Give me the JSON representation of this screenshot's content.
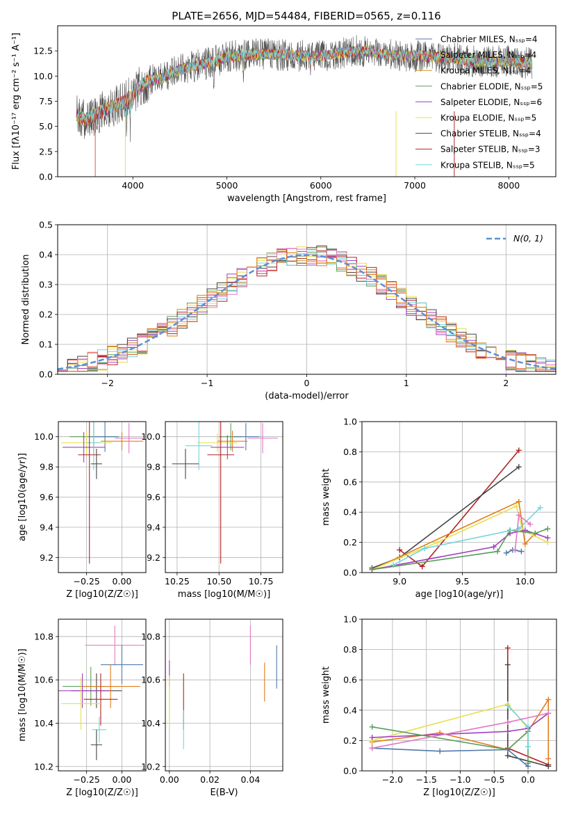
{
  "figure": {
    "title": "PLATE=2656, MJD=54484, FIBERID=0565, z=0.116"
  },
  "legend_labels": [
    "N(0, 1)"
  ],
  "chart_data": [
    {
      "id": "spectrum",
      "type": "line",
      "title": "PLATE=2656, MJD=54484, FIBERID=0565, z=0.116",
      "xlabel": "wavelength [Angstrom, rest frame]",
      "ylabel": "Flux [fλ10⁻¹⁷ erg cm⁻² s⁻¹ A⁻¹]",
      "xlim": [
        3200,
        8500
      ],
      "ylim": [
        0,
        15
      ],
      "xticks": [
        4000,
        5000,
        6000,
        7000,
        8000
      ],
      "yticks": [
        0.0,
        2.5,
        5.0,
        7.5,
        10.0,
        12.5
      ],
      "grid": false,
      "legend_position": "top-right",
      "continuum": {
        "x": [
          3400,
          3500,
          3600,
          3700,
          3800,
          3900,
          4000,
          4100,
          4200,
          4300,
          4400,
          4500,
          4600,
          4700,
          4800,
          4900,
          5000,
          5200,
          5400,
          5600,
          5800,
          6000,
          6200,
          6400,
          6600,
          6800,
          7000,
          7200,
          7400,
          7600,
          7800,
          8000,
          8200,
          8250
        ],
        "y": [
          6.1,
          5.6,
          6.2,
          6.6,
          7.0,
          7.4,
          8.2,
          9.2,
          9.6,
          9.7,
          10.3,
          10.6,
          10.9,
          11.1,
          11.3,
          11.5,
          11.9,
          12.1,
          12.2,
          12.1,
          12.0,
          12.0,
          12.3,
          12.5,
          12.3,
          12.0,
          12.0,
          11.9,
          11.8,
          11.5,
          11.4,
          11.5,
          11.3,
          11.2
        ]
      },
      "series": [
        {
          "name": "Chabrier MILES, N_SSP=4",
          "color": "#4e79a7"
        },
        {
          "name": "Salpeter MILES, N_SSP=4",
          "color": "#e15759"
        },
        {
          "name": "Kroupa MILES, N_SSP=4",
          "color": "#c4931e"
        },
        {
          "name": "Chabrier ELODIE, N_SSP=5",
          "color": "#5a9e5a"
        },
        {
          "name": "Salpeter ELODIE, N_SSP=6",
          "color": "#a040c0"
        },
        {
          "name": "Kroupa ELODIE, N_SSP=5",
          "color": "#e6e04a"
        },
        {
          "name": "Chabrier STELIB, N_SSP=4",
          "color": "#444444"
        },
        {
          "name": "Salpeter STELIB, N_SSP=3",
          "color": "#b22222"
        },
        {
          "name": "Kroupa STELIB, N_SSP=5",
          "color": "#6fd6e0"
        }
      ]
    },
    {
      "id": "residuals",
      "type": "line",
      "xlabel": "(data-model)/error",
      "ylabel": "Normed distribution",
      "xlim": [
        -2.5,
        2.5
      ],
      "ylim": [
        0,
        0.5
      ],
      "xticks": [
        -2,
        -1,
        0,
        1,
        2
      ],
      "yticks": [
        0.0,
        0.1,
        0.2,
        0.3,
        0.4,
        0.5
      ],
      "grid": true,
      "legend_position": "top-right",
      "gaussian": {
        "name": "N(0, 1)",
        "color": "#5b8fd6",
        "mean": 0,
        "sigma": 1
      },
      "bin_width": 0.1,
      "histogram_colors": [
        "#e15759",
        "#c4931e",
        "#5a9e5a",
        "#a040c0",
        "#e6e04a",
        "#444444",
        "#b22222",
        "#6fd6e0",
        "#e377c2",
        "#e07b1a"
      ]
    },
    {
      "id": "age-vs-Z",
      "type": "scatter",
      "xlabel": "Z [log10(Z/Z☉)]",
      "ylabel": "age  [log10(age/yr)]",
      "xlim": [
        -0.45,
        0.17
      ],
      "ylim": [
        9.1,
        10.1
      ],
      "xticks": [
        -0.25,
        0.0
      ],
      "yticks": [
        9.2,
        9.4,
        9.6,
        9.8,
        10.0
      ],
      "grid": true,
      "points": [
        {
          "x": -0.2,
          "y": 10.0,
          "xerr": 0.17,
          "yerr": 0.12,
          "color": "#5a9e5a"
        },
        {
          "x": -0.12,
          "y": 10.0,
          "xerr": 0.1,
          "yerr": 0.1,
          "color": "#4e79a7"
        },
        {
          "x": 0.0,
          "y": 9.97,
          "xerr": 0.15,
          "yerr": 0.06,
          "color": "#e07b1a"
        },
        {
          "x": 0.05,
          "y": 9.99,
          "xerr": 0.1,
          "yerr": 0.1,
          "color": "#e377c2"
        },
        {
          "x": -0.25,
          "y": 9.96,
          "xerr": 0.18,
          "yerr": 0.08,
          "color": "#e6e04a"
        },
        {
          "x": -0.27,
          "y": 9.93,
          "xerr": 0.15,
          "yerr": 0.1,
          "color": "#a040c0"
        },
        {
          "x": -0.2,
          "y": 9.96,
          "xerr": 0.05,
          "yerr": 0.18,
          "color": "#6fd6e0"
        },
        {
          "x": -0.23,
          "y": 9.88,
          "xerr": 0.08,
          "yerr": 0.72,
          "color": "#b22222"
        },
        {
          "x": -0.18,
          "y": 9.82,
          "xerr": 0.04,
          "yerr": 0.1,
          "color": "#444444"
        }
      ]
    },
    {
      "id": "age-vs-mass",
      "type": "scatter",
      "xlabel": "mass [log10(M/M☉)]",
      "ylabel": "",
      "xlim": [
        10.18,
        10.88
      ],
      "ylim": [
        9.1,
        10.1
      ],
      "xticks": [
        10.25,
        10.5,
        10.75
      ],
      "yticks": [
        9.2,
        9.4,
        9.6,
        9.8,
        10.0
      ],
      "grid": true,
      "points": [
        {
          "x": 10.57,
          "y": 10.0,
          "xerr": 0.07,
          "yerr": 0.09,
          "color": "#5a9e5a"
        },
        {
          "x": 10.66,
          "y": 10.0,
          "xerr": 0.08,
          "yerr": 0.09,
          "color": "#4e79a7"
        },
        {
          "x": 10.58,
          "y": 9.97,
          "xerr": 0.09,
          "yerr": 0.07,
          "color": "#e07b1a"
        },
        {
          "x": 10.76,
          "y": 9.99,
          "xerr": 0.09,
          "yerr": 0.1,
          "color": "#e377c2"
        },
        {
          "x": 10.49,
          "y": 9.96,
          "xerr": 0.12,
          "yerr": 0.06,
          "color": "#e6e04a"
        },
        {
          "x": 10.55,
          "y": 9.93,
          "xerr": 0.1,
          "yerr": 0.08,
          "color": "#a040c0"
        },
        {
          "x": 10.38,
          "y": 9.94,
          "xerr": 0.08,
          "yerr": 0.16,
          "color": "#6fd6e0"
        },
        {
          "x": 10.51,
          "y": 9.88,
          "xerr": 0.08,
          "yerr": 0.72,
          "color": "#b22222"
        },
        {
          "x": 10.3,
          "y": 9.82,
          "xerr": 0.08,
          "yerr": 0.1,
          "color": "#444444"
        }
      ]
    },
    {
      "id": "massweight-vs-age",
      "type": "line",
      "xlabel": "age  [log10(age/yr)]",
      "ylabel": "mass weight",
      "xlim": [
        8.7,
        10.25
      ],
      "ylim": [
        0,
        1
      ],
      "xticks": [
        9.0,
        9.5,
        10.0
      ],
      "yticks": [
        0.0,
        0.2,
        0.4,
        0.6,
        0.8,
        1.0
      ],
      "grid": true,
      "series": [
        {
          "color": "#b22222",
          "x": [
            9.0,
            9.18,
            9.95
          ],
          "y": [
            0.15,
            0.04,
            0.81
          ]
        },
        {
          "color": "#444444",
          "x": [
            8.78,
            9.0,
            9.95
          ],
          "y": [
            0.03,
            0.1,
            0.7
          ]
        },
        {
          "color": "#e07b1a",
          "x": [
            8.78,
            9.95,
            10.0,
            10.08
          ],
          "y": [
            0.02,
            0.47,
            0.19,
            0.26
          ]
        },
        {
          "color": "#e6e04a",
          "x": [
            8.78,
            9.3,
            9.93,
            9.98,
            10.18
          ],
          "y": [
            0.02,
            0.2,
            0.44,
            0.28,
            0.2
          ]
        },
        {
          "color": "#a040c0",
          "x": [
            8.78,
            9.75,
            9.88,
            10.0,
            10.18
          ],
          "y": [
            0.02,
            0.17,
            0.26,
            0.28,
            0.23
          ]
        },
        {
          "color": "#5a9e5a",
          "x": [
            8.78,
            9.78,
            9.88,
            10.08,
            10.18
          ],
          "y": [
            0.02,
            0.14,
            0.28,
            0.26,
            0.29
          ]
        },
        {
          "color": "#6fd6e0",
          "x": [
            8.95,
            9.2,
            9.95,
            10.12
          ],
          "y": [
            0.05,
            0.16,
            0.29,
            0.43
          ]
        },
        {
          "color": "#4e79a7",
          "x": [
            9.85,
            9.9,
            9.97
          ],
          "y": [
            0.13,
            0.15,
            0.14
          ]
        },
        {
          "color": "#e377c2",
          "x": [
            9.92,
            9.95,
            10.04
          ],
          "y": [
            0.15,
            0.38,
            0.32
          ]
        }
      ]
    },
    {
      "id": "mass-vs-Z",
      "type": "scatter",
      "xlabel": "Z [log10(Z/Z☉)]",
      "ylabel": "mass [log10(M/M☉)]",
      "xlim": [
        -0.45,
        0.17
      ],
      "ylim": [
        10.18,
        10.88
      ],
      "xticks": [
        -0.25,
        0.0
      ],
      "yticks": [
        10.2,
        10.4,
        10.6,
        10.8
      ],
      "grid": true,
      "points": [
        {
          "x": -0.05,
          "y": 10.76,
          "xerr": 0.21,
          "yerr": 0.09,
          "color": "#e377c2"
        },
        {
          "x": 0.0,
          "y": 10.67,
          "xerr": 0.15,
          "yerr": 0.09,
          "color": "#4e79a7"
        },
        {
          "x": -0.22,
          "y": 10.57,
          "xerr": 0.2,
          "yerr": 0.09,
          "color": "#5a9e5a"
        },
        {
          "x": -0.18,
          "y": 10.55,
          "xerr": 0.18,
          "yerr": 0.08,
          "color": "#444444"
        },
        {
          "x": -0.08,
          "y": 10.57,
          "xerr": 0.21,
          "yerr": 0.1,
          "color": "#e07b1a"
        },
        {
          "x": -0.28,
          "y": 10.55,
          "xerr": 0.19,
          "yerr": 0.08,
          "color": "#a040c0"
        },
        {
          "x": -0.15,
          "y": 10.51,
          "xerr": 0.12,
          "yerr": 0.12,
          "color": "#b22222"
        },
        {
          "x": -0.29,
          "y": 10.49,
          "xerr": 0.14,
          "yerr": 0.12,
          "color": "#e6e04a"
        },
        {
          "x": -0.16,
          "y": 10.37,
          "xerr": 0.05,
          "yerr": 0.06,
          "color": "#6fd6e0"
        },
        {
          "x": -0.18,
          "y": 10.3,
          "xerr": 0.04,
          "yerr": 0.07,
          "color": "#444444"
        }
      ]
    },
    {
      "id": "mass-vs-EBV",
      "type": "scatter",
      "xlabel": "E(B-V)",
      "ylabel": "",
      "xlim": [
        -0.002,
        0.056
      ],
      "ylim": [
        10.18,
        10.88
      ],
      "xticks": [
        0.0,
        0.02,
        0.04
      ],
      "yticks": [
        10.2,
        10.4,
        10.6,
        10.8
      ],
      "grid": true,
      "points": [
        {
          "x": 0.04,
          "y": 10.76,
          "yerr": 0.09,
          "color": "#e377c2"
        },
        {
          "x": 0.053,
          "y": 10.66,
          "yerr": 0.1,
          "color": "#4e79a7"
        },
        {
          "x": 0.047,
          "y": 10.59,
          "yerr": 0.09,
          "color": "#e07b1a"
        },
        {
          "x": 0.0,
          "y": 10.63,
          "yerr": 0.06,
          "color": "#a040c0"
        },
        {
          "x": 0.0,
          "y": 10.5,
          "yerr": 0.12,
          "color": "#e6e04a"
        },
        {
          "x": 0.007,
          "y": 10.5,
          "yerr": 0.13,
          "color": "#b22222"
        },
        {
          "x": 0.007,
          "y": 10.37,
          "yerr": 0.09,
          "color": "#6fd6e0"
        }
      ]
    },
    {
      "id": "massweight-vs-Z",
      "type": "line",
      "xlabel": "Z [log10(Z/Z☉)]",
      "ylabel": "mass weight",
      "xlim": [
        -2.45,
        0.42
      ],
      "ylim": [
        0,
        1
      ],
      "xticks": [
        -2.0,
        -1.5,
        -1.0,
        -0.5,
        0.0
      ],
      "yticks": [
        0.0,
        0.2,
        0.4,
        0.6,
        0.8,
        1.0
      ],
      "grid": true,
      "series": [
        {
          "color": "#b22222",
          "x": [
            -0.3,
            -0.3,
            0.3
          ],
          "y": [
            0.81,
            0.15,
            0.04
          ]
        },
        {
          "color": "#444444",
          "x": [
            -0.3,
            -0.3,
            0.3
          ],
          "y": [
            0.7,
            0.1,
            0.03
          ]
        },
        {
          "color": "#e07b1a",
          "x": [
            -2.3,
            -1.3,
            -0.3,
            0.0,
            0.3,
            0.3
          ],
          "y": [
            0.19,
            0.25,
            0.14,
            0.26,
            0.47,
            0.08
          ]
        },
        {
          "color": "#e6e04a",
          "x": [
            -2.3,
            -0.3,
            0.0,
            0.3
          ],
          "y": [
            0.2,
            0.44,
            0.28,
            0.38
          ]
        },
        {
          "color": "#a040c0",
          "x": [
            -2.3,
            -0.3,
            0.0,
            0.3
          ],
          "y": [
            0.22,
            0.26,
            0.28,
            0.38
          ]
        },
        {
          "color": "#5a9e5a",
          "x": [
            -2.3,
            -0.3,
            0.0,
            0.0
          ],
          "y": [
            0.29,
            0.14,
            0.26,
            0.05
          ]
        },
        {
          "color": "#6fd6e0",
          "x": [
            -0.3,
            0.0,
            0.0
          ],
          "y": [
            0.43,
            0.29,
            0.16
          ]
        },
        {
          "color": "#4e79a7",
          "x": [
            -2.3,
            -1.3,
            -0.3,
            0.0
          ],
          "y": [
            0.15,
            0.13,
            0.14,
            0.03
          ]
        },
        {
          "color": "#e377c2",
          "x": [
            -2.3,
            -0.3,
            0.3
          ],
          "y": [
            0.15,
            0.32,
            0.38
          ]
        }
      ]
    }
  ]
}
